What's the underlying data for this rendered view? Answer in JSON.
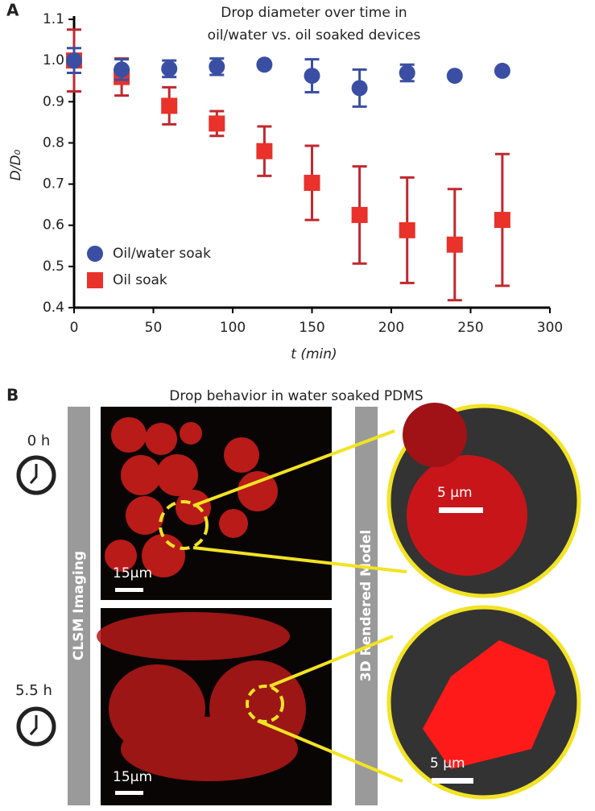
{
  "panel_a_label": "A",
  "chart_data": {
    "type": "scatter",
    "title_lines": [
      "Drop diameter over time in",
      "oil/water vs. oil soaked devices"
    ],
    "xlabel": "t (min)",
    "ylabel": "D/D₀",
    "x": [
      0,
      30,
      60,
      90,
      120,
      150,
      180,
      210,
      240,
      270
    ],
    "series": [
      {
        "name": "Oil/water soak",
        "color": "#3a4fa3",
        "marker": "circle",
        "values": [
          1.0,
          0.978,
          0.98,
          0.985,
          0.99,
          0.963,
          0.933,
          0.97,
          0.963,
          0.975
        ],
        "errors": [
          0.03,
          0.025,
          0.02,
          0.02,
          0.005,
          0.04,
          0.045,
          0.02,
          0.005,
          0.005
        ]
      },
      {
        "name": "Oil soak",
        "color": "#e8322a",
        "error_color": "#c0282f",
        "marker": "square",
        "values": [
          1.0,
          0.96,
          0.89,
          0.847,
          0.78,
          0.703,
          0.625,
          0.588,
          0.553,
          0.613
        ],
        "errors": [
          0.075,
          0.045,
          0.045,
          0.03,
          0.06,
          0.09,
          0.118,
          0.128,
          0.135,
          0.16
        ]
      }
    ],
    "xlim": [
      0,
      300
    ],
    "xticks": [
      0,
      50,
      100,
      150,
      200,
      250,
      300
    ],
    "ylim": [
      0.4,
      1.1
    ],
    "yticks": [
      0.4,
      0.5,
      0.6,
      0.7,
      0.8,
      0.9,
      {
        "value": 1,
        "label": "1.0"
      },
      1.1
    ],
    "legend": "lower left"
  },
  "panel_b": {
    "label": "B",
    "title": "Drop behavior in water soaked PDMS",
    "left_bar": "CLSM Imaging",
    "right_bar": "3D Rendered Model",
    "times": [
      "0 h",
      "5.5 h"
    ],
    "scale_bars": [
      "15μm",
      "15μm",
      "5 μm",
      "5 μm"
    ]
  }
}
